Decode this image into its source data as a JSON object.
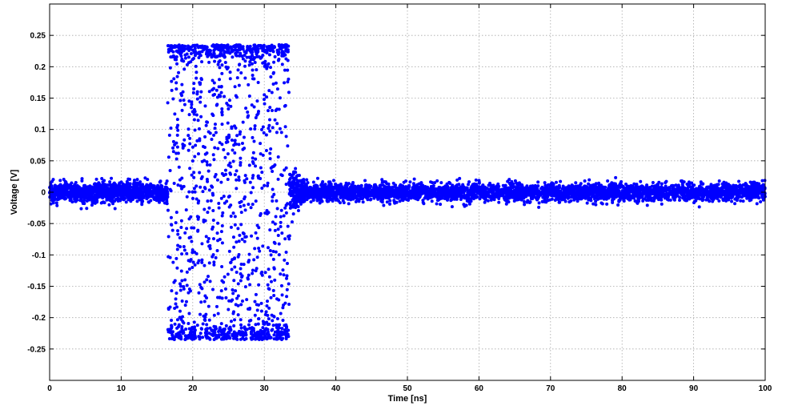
{
  "chart_data": {
    "type": "scatter",
    "title": "",
    "xlabel": "Time [ns]",
    "ylabel": "Voltage [V]",
    "xlim": [
      0,
      100
    ],
    "ylim": [
      -0.3,
      0.3
    ],
    "x_ticks": [
      0,
      10,
      20,
      30,
      40,
      50,
      60,
      70,
      80,
      90,
      100
    ],
    "x_tick_labels": [
      "0",
      "10",
      "20",
      "30",
      "40",
      "50",
      "60",
      "70",
      "80",
      "90",
      "100"
    ],
    "y_ticks": [
      0.25,
      0.2,
      0.15,
      0.1,
      0.05,
      0,
      -0.05,
      -0.1,
      -0.15,
      -0.2,
      -0.25
    ],
    "y_tick_labels": [
      "0.25",
      "0.2",
      "0.15",
      "0.1",
      "0.05",
      "0",
      "-0.05",
      "-0.1",
      "-0.15",
      "-0.2",
      "-0.25"
    ],
    "grid": true,
    "marker_color": "#0000ff",
    "series": [
      {
        "segments": [
          {
            "x_range": [
              0,
              16.5
            ],
            "kind": "noise",
            "amplitude": 0.008,
            "count": 1100
          },
          {
            "x_range": [
              16.5,
              33.5
            ],
            "kind": "burst",
            "amplitude": 0.235,
            "count": 1500
          },
          {
            "x_range": [
              33.5,
              36
            ],
            "kind": "decay",
            "amplitude": 0.03,
            "count": 250
          },
          {
            "x_range": [
              36,
              100
            ],
            "kind": "noise",
            "amplitude": 0.007,
            "count": 3600
          }
        ]
      }
    ]
  }
}
